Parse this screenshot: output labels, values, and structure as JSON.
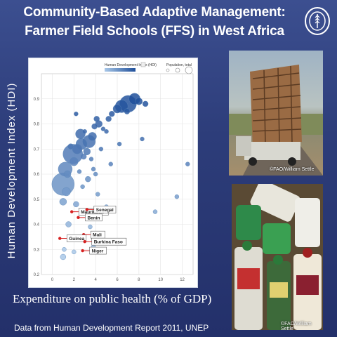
{
  "slide": {
    "title_line1": "Community-Based Adaptive Management:",
    "title_line2": "Farmer Field Schools (FFS) in West Africa",
    "y_axis_title": "Human Development Index (HDI)",
    "x_axis_caption": "Expenditure on public health (% of GDP)",
    "source": "Data from Human Development Report 2011, UNEP"
  },
  "photos": {
    "truck_credit": "©FAO/William Settle",
    "bottles_credit": "©FAO/William Settle"
  },
  "colors": {
    "background": "#2d3d7a",
    "bubble_dark": "#1f4f9a",
    "bubble_light": "#a9c8e8",
    "highlight": "#d62020"
  },
  "chart_data": {
    "type": "scatter",
    "legend": {
      "color_label": "Human Development Index (HDI)",
      "size_label": "Population, total"
    },
    "xlim": [
      -1,
      13
    ],
    "ylim": [
      0.2,
      1.0
    ],
    "x_ticks": [
      "0",
      "2",
      "4",
      "6",
      "8",
      "10",
      "12"
    ],
    "y_ticks": [
      "0.2",
      "0.3",
      "0.4",
      "0.5",
      "0.6",
      "0.7",
      "0.8",
      "0.9"
    ],
    "grid": true,
    "highlighted": [
      {
        "label": "Mauritania",
        "x": 1.8,
        "y": 0.45
      },
      {
        "label": "Senegal",
        "x": 3.2,
        "y": 0.459
      },
      {
        "label": "Benin",
        "x": 2.4,
        "y": 0.427
      },
      {
        "label": "Mali",
        "x": 2.9,
        "y": 0.359
      },
      {
        "label": "Guinea",
        "x": 0.7,
        "y": 0.344
      },
      {
        "label": "Burkina Faso",
        "x": 3.0,
        "y": 0.331
      },
      {
        "label": "Niger",
        "x": 2.8,
        "y": 0.295
      }
    ],
    "points": [
      {
        "x": 1.0,
        "y": 0.56,
        "s": 16
      },
      {
        "x": 1.2,
        "y": 0.62,
        "s": 10
      },
      {
        "x": 2.0,
        "y": 0.65,
        "s": 6
      },
      {
        "x": 1.9,
        "y": 0.68,
        "s": 14
      },
      {
        "x": 2.3,
        "y": 0.7,
        "s": 7
      },
      {
        "x": 2.7,
        "y": 0.72,
        "s": 8
      },
      {
        "x": 3.2,
        "y": 0.69,
        "s": 5
      },
      {
        "x": 3.4,
        "y": 0.73,
        "s": 9
      },
      {
        "x": 3.7,
        "y": 0.75,
        "s": 6
      },
      {
        "x": 2.6,
        "y": 0.76,
        "s": 7
      },
      {
        "x": 3.9,
        "y": 0.79,
        "s": 4
      },
      {
        "x": 4.3,
        "y": 0.8,
        "s": 5
      },
      {
        "x": 5.2,
        "y": 0.82,
        "s": 4
      },
      {
        "x": 6.0,
        "y": 0.86,
        "s": 6
      },
      {
        "x": 6.4,
        "y": 0.87,
        "s": 9
      },
      {
        "x": 7.0,
        "y": 0.88,
        "s": 12
      },
      {
        "x": 7.6,
        "y": 0.9,
        "s": 8
      },
      {
        "x": 8.0,
        "y": 0.89,
        "s": 5
      },
      {
        "x": 8.6,
        "y": 0.88,
        "s": 4
      },
      {
        "x": 5.5,
        "y": 0.84,
        "s": 4
      },
      {
        "x": 6.9,
        "y": 0.85,
        "s": 4
      },
      {
        "x": 4.7,
        "y": 0.78,
        "s": 3
      },
      {
        "x": 3.0,
        "y": 0.77,
        "s": 3
      },
      {
        "x": 2.2,
        "y": 0.84,
        "s": 3
      },
      {
        "x": 4.1,
        "y": 0.82,
        "s": 4
      },
      {
        "x": 5.0,
        "y": 0.77,
        "s": 3
      },
      {
        "x": 1.7,
        "y": 0.71,
        "s": 4
      },
      {
        "x": 2.9,
        "y": 0.67,
        "s": 4
      },
      {
        "x": 3.6,
        "y": 0.66,
        "s": 3
      },
      {
        "x": 4.5,
        "y": 0.7,
        "s": 3
      },
      {
        "x": 1.4,
        "y": 0.6,
        "s": 5
      },
      {
        "x": 2.5,
        "y": 0.61,
        "s": 3
      },
      {
        "x": 3.8,
        "y": 0.62,
        "s": 3
      },
      {
        "x": 1.3,
        "y": 0.53,
        "s": 6
      },
      {
        "x": 2.8,
        "y": 0.55,
        "s": 3
      },
      {
        "x": 3.3,
        "y": 0.58,
        "s": 4
      },
      {
        "x": 4.0,
        "y": 0.6,
        "s": 3
      },
      {
        "x": 5.4,
        "y": 0.64,
        "s": 3
      },
      {
        "x": 6.2,
        "y": 0.72,
        "s": 3
      },
      {
        "x": 8.3,
        "y": 0.74,
        "s": 3
      },
      {
        "x": 11.5,
        "y": 0.51,
        "s": 3
      },
      {
        "x": 12.5,
        "y": 0.64,
        "s": 3
      },
      {
        "x": 1.0,
        "y": 0.49,
        "s": 5
      },
      {
        "x": 2.2,
        "y": 0.48,
        "s": 4
      },
      {
        "x": 4.2,
        "y": 0.52,
        "s": 3
      },
      {
        "x": 5.0,
        "y": 0.47,
        "s": 3
      },
      {
        "x": 1.5,
        "y": 0.4,
        "s": 4
      },
      {
        "x": 3.5,
        "y": 0.39,
        "s": 3
      },
      {
        "x": 1.1,
        "y": 0.3,
        "s": 3
      },
      {
        "x": 2.0,
        "y": 0.29,
        "s": 3
      },
      {
        "x": 3.8,
        "y": 0.31,
        "s": 3
      },
      {
        "x": 1.0,
        "y": 0.27,
        "s": 4
      },
      {
        "x": 4.6,
        "y": 0.36,
        "s": 3
      },
      {
        "x": 9.5,
        "y": 0.45,
        "s": 3
      }
    ]
  }
}
